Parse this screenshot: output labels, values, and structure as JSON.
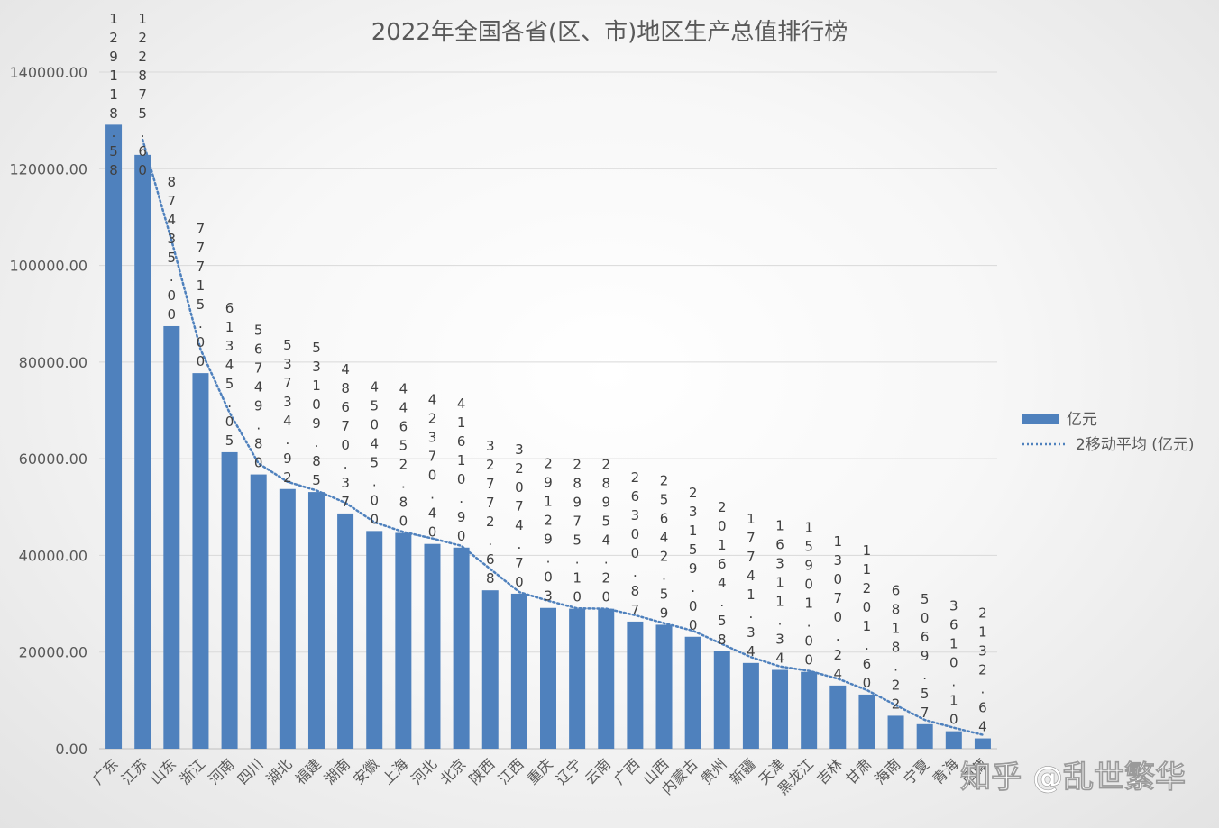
{
  "chart_data": {
    "type": "bar",
    "title": "2022年全国各省(区、市)地区生产总值排行榜",
    "ylim": [
      0,
      140000
    ],
    "yticks": [
      "0.00",
      "20000.00",
      "40000.00",
      "60000.00",
      "80000.00",
      "100000.00",
      "120000.00",
      "140000.00"
    ],
    "grid": true,
    "legend_position": "right",
    "categories": [
      "广东",
      "江苏",
      "山东",
      "浙江",
      "河南",
      "四川",
      "湖北",
      "福建",
      "湖南",
      "安徽",
      "上海",
      "河北",
      "北京",
      "陕西",
      "江西",
      "重庆",
      "辽宁",
      "云南",
      "广西",
      "山西",
      "内蒙古",
      "贵州",
      "新疆",
      "天津",
      "黑龙江",
      "吉林",
      "甘肃",
      "海南",
      "宁夏",
      "青海",
      "西藏"
    ],
    "series": [
      {
        "name": "亿元",
        "color": "#4f81bd",
        "values": [
          129118.58,
          122875.6,
          87435.0,
          77715.0,
          61345.05,
          56749.8,
          53734.92,
          53109.85,
          48670.37,
          45045.0,
          44652.8,
          42370.4,
          41610.9,
          32772.68,
          32074.7,
          29129.03,
          28975.1,
          28954.2,
          26300.87,
          25642.59,
          23159.0,
          20164.58,
          17741.34,
          16311.34,
          15901.0,
          13070.24,
          11201.6,
          6818.22,
          5069.57,
          3610.1,
          2132.64
        ],
        "labels": [
          "129118.58",
          "122875.60",
          "87435.00",
          "77715.00",
          "61345.05",
          "56749.80",
          "53734.92",
          "53109.85",
          "48670.37",
          "45045.00",
          "44652.80",
          "42370.40",
          "41610.90",
          "32772.68",
          "32074.70",
          "29129.03",
          "28975.10",
          "28954.20",
          "26300.87",
          "25642.59",
          "23159.00",
          "20164.58",
          "17741.34",
          "16311.34",
          "15901.00",
          "13070.24",
          "11201.60",
          "6818.22",
          "5069.57",
          "3610.10",
          "2132.64"
        ]
      },
      {
        "name": "2移动平均 (亿元)",
        "color": "#4f81bd",
        "style": "dotted",
        "type": "line",
        "values": [
          null,
          125997.09,
          105155.3,
          82575.0,
          69530.03,
          59047.43,
          55242.36,
          53422.39,
          50890.11,
          46857.69,
          44848.9,
          43511.6,
          41990.65,
          37191.79,
          32423.69,
          30601.87,
          29052.07,
          28964.65,
          27627.54,
          25971.73,
          24400.8,
          21661.79,
          18952.96,
          17026.34,
          16106.17,
          14485.62,
          12135.92,
          9009.91,
          5943.9,
          4339.84,
          2871.37
        ]
      }
    ]
  },
  "watermark": "知乎 @乱世繁华"
}
